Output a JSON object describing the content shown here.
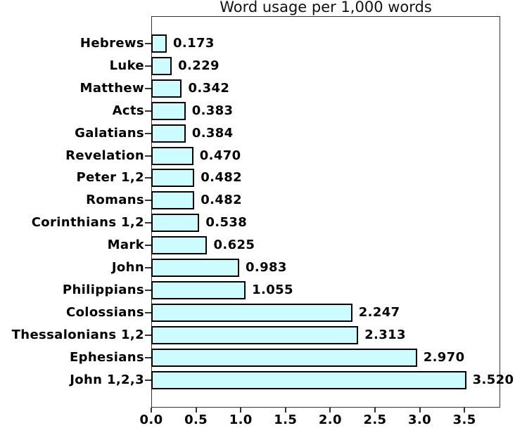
{
  "chart_data": {
    "type": "bar",
    "orientation": "horizontal",
    "title": "Word usage per 1,000 words",
    "categories": [
      "Hebrews",
      "Luke",
      "Matthew",
      "Acts",
      "Galatians",
      "Revelation",
      "Peter 1,2",
      "Romans",
      "Corinthians 1,2",
      "Mark",
      "John",
      "Philippians",
      "Colossians",
      "Thessalonians 1,2",
      "Ephesians",
      "John 1,2,3"
    ],
    "values": [
      0.173,
      0.229,
      0.342,
      0.383,
      0.384,
      0.47,
      0.482,
      0.482,
      0.538,
      0.625,
      0.983,
      1.055,
      2.247,
      2.313,
      2.97,
      3.52
    ],
    "value_labels": [
      "0.173",
      "0.229",
      "0.342",
      "0.383",
      "0.384",
      "0.470",
      "0.482",
      "0.482",
      "0.538",
      "0.625",
      "0.983",
      "1.055",
      "2.247",
      "2.313",
      "2.970",
      "3.520"
    ],
    "xlabel": "",
    "ylabel": "",
    "xlim": [
      0,
      3.9
    ],
    "x_ticks": [
      {
        "value": 0.0,
        "label": "0.0"
      },
      {
        "value": 0.5,
        "label": "0.5"
      },
      {
        "value": 1.0,
        "label": "1.0"
      },
      {
        "value": 1.5,
        "label": "1.5"
      },
      {
        "value": 2.0,
        "label": "2.0"
      },
      {
        "value": 2.5,
        "label": "2.5"
      },
      {
        "value": 3.0,
        "label": "3.0"
      },
      {
        "value": 3.5,
        "label": "3.5"
      }
    ],
    "bar_color": "#CCFCFF",
    "bar_border_color": "#000000",
    "frame_color": "#333333",
    "text_color": "#000000",
    "grid": false,
    "legend": "none"
  }
}
